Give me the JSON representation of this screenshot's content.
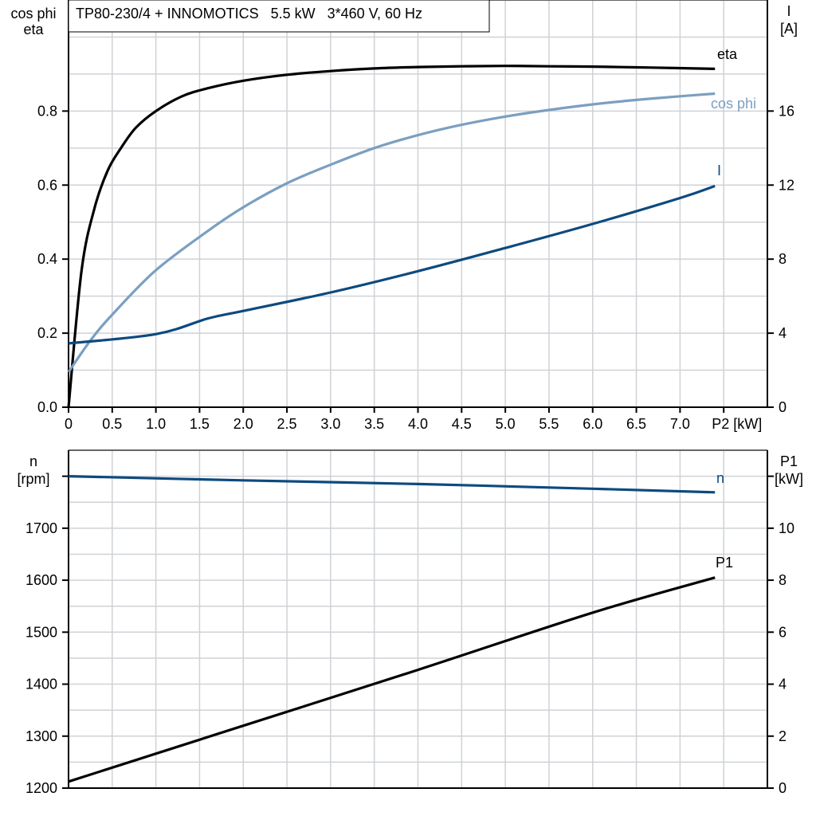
{
  "title": "TP80-230/4 + INNOMOTICS   5.5 kW   3*460 V, 60 Hz",
  "colors": {
    "eta": "#000000",
    "cos_phi": "#7b9fc0",
    "I": "#0d4a7f",
    "n": "#0d4a7f",
    "P1": "#000000",
    "grid": "#cfd2d6"
  },
  "chart_data": [
    {
      "type": "line",
      "grid": true,
      "x_label": "P2 [kW]",
      "x_ticks": [
        "0",
        "0.5",
        "1.0",
        "1.5",
        "2.0",
        "2.5",
        "3.0",
        "3.5",
        "4.0",
        "4.5",
        "5.0",
        "5.5",
        "6.0",
        "6.5",
        "7.0"
      ],
      "xlim": [
        0,
        8
      ],
      "y_left_label": [
        "cos phi",
        "eta"
      ],
      "y_left_ticks": [
        "0.0",
        "0.2",
        "0.4",
        "0.6",
        "0.8"
      ],
      "y_left_lim": [
        0,
        1.1
      ],
      "y_right_label": [
        "I",
        "[A]"
      ],
      "y_right_ticks": [
        "0",
        "4",
        "8",
        "12",
        "16"
      ],
      "y_right_lim": [
        0,
        22
      ],
      "series": [
        {
          "name": "eta",
          "axis": "left",
          "x": [
            0,
            0.15,
            0.3,
            0.45,
            0.6,
            0.77,
            1.0,
            1.3,
            1.6,
            2.0,
            2.5,
            3.0,
            3.5,
            4.0,
            4.5,
            5.0,
            5.5,
            6.0,
            6.5,
            7.0,
            7.4
          ],
          "y": [
            0,
            0.37,
            0.54,
            0.64,
            0.7,
            0.755,
            0.8,
            0.84,
            0.862,
            0.882,
            0.898,
            0.908,
            0.915,
            0.919,
            0.921,
            0.922,
            0.921,
            0.92,
            0.918,
            0.916,
            0.914
          ]
        },
        {
          "name": "cos phi",
          "axis": "left",
          "x": [
            0,
            0.25,
            0.5,
            1.0,
            1.6,
            2.0,
            2.5,
            3.0,
            3.5,
            4.0,
            4.5,
            5.0,
            5.5,
            6.0,
            6.5,
            7.0,
            7.4
          ],
          "y": [
            0.095,
            0.18,
            0.25,
            0.37,
            0.477,
            0.54,
            0.605,
            0.655,
            0.7,
            0.735,
            0.763,
            0.785,
            0.803,
            0.818,
            0.83,
            0.84,
            0.847
          ]
        },
        {
          "name": "I",
          "axis": "right",
          "x": [
            0,
            1.0,
            1.6,
            2.0,
            3.0,
            4.0,
            5.0,
            6.0,
            7.0,
            7.4
          ],
          "y": [
            3.45,
            3.95,
            4.8,
            5.2,
            6.2,
            7.35,
            8.6,
            9.9,
            11.3,
            11.95
          ]
        }
      ]
    },
    {
      "type": "line",
      "grid": true,
      "xlim": [
        0,
        8
      ],
      "y_left_label": [
        "n",
        "[rpm]"
      ],
      "y_left_ticks": [
        "1200",
        "1300",
        "1400",
        "1500",
        "1600",
        "1700"
      ],
      "y_left_lim": [
        1200,
        1850
      ],
      "y_right_label": [
        "P1",
        "[kW]"
      ],
      "y_right_ticks": [
        "0",
        "2",
        "4",
        "6",
        "8",
        "10"
      ],
      "y_right_lim": [
        0,
        13
      ],
      "series": [
        {
          "name": "n",
          "axis": "left",
          "x": [
            0,
            2.0,
            4.0,
            6.0,
            7.4
          ],
          "y": [
            1800,
            1792,
            1785,
            1776,
            1769
          ]
        },
        {
          "name": "P1",
          "axis": "right",
          "x": [
            0,
            2.0,
            4.0,
            6.0,
            7.4
          ],
          "y": [
            0.25,
            2.4,
            4.55,
            6.75,
            8.1
          ]
        }
      ]
    }
  ]
}
